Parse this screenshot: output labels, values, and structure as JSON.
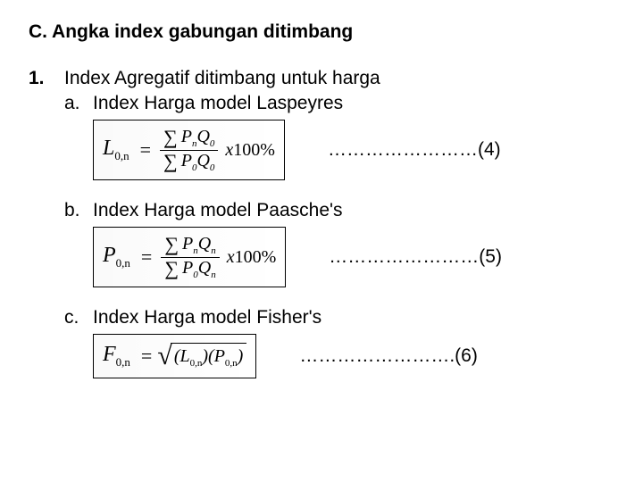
{
  "meta": {
    "background_color": "#ffffff",
    "text_color": "#000000",
    "font_family": "Arial",
    "formula_font_family": "Times New Roman",
    "heading_fontsize_pt": 16,
    "body_fontsize_pt": 16,
    "formula_border_color": "#000000"
  },
  "section": {
    "heading": "C. Angka index gabungan ditimbang",
    "items": [
      {
        "number": "1.",
        "title": "Index Agregatif ditimbang untuk harga",
        "subs": [
          {
            "letter": "a.",
            "title": "Index Harga model Laspeyres",
            "formula": {
              "type": "fraction",
              "lhs_base": "L",
              "lhs_sub": "0,n",
              "numerator": {
                "sum": true,
                "t1": "P",
                "t1_sub": "n",
                "t2": "Q",
                "t2_sub": "0"
              },
              "denominator": {
                "sum": true,
                "t1": "P",
                "t1_sub": "0",
                "t2": "Q",
                "t2_sub": "0"
              },
              "tail": "x100%"
            },
            "eqref": "……………………(4)"
          },
          {
            "letter": "b.",
            "title": "Index Harga model Paasche's",
            "formula": {
              "type": "fraction",
              "lhs_base": "P",
              "lhs_sub": "0,n",
              "numerator": {
                "sum": true,
                "t1": "P",
                "t1_sub": "n",
                "t2": "Q",
                "t2_sub": "n"
              },
              "denominator": {
                "sum": true,
                "t1": "P",
                "t1_sub": "0",
                "t2": "Q",
                "t2_sub": "n"
              },
              "tail": "x100%"
            },
            "eqref": "……………………(5)"
          },
          {
            "letter": "c.",
            "title": "Index Harga model Fisher's",
            "formula": {
              "type": "sqrt_product",
              "lhs_base": "F",
              "lhs_sub": "0,n",
              "left": {
                "base": "L",
                "sub": "0,n"
              },
              "right": {
                "base": "P",
                "sub": "0,n"
              }
            },
            "eqref": "…………………….(6)"
          }
        ]
      }
    ]
  }
}
